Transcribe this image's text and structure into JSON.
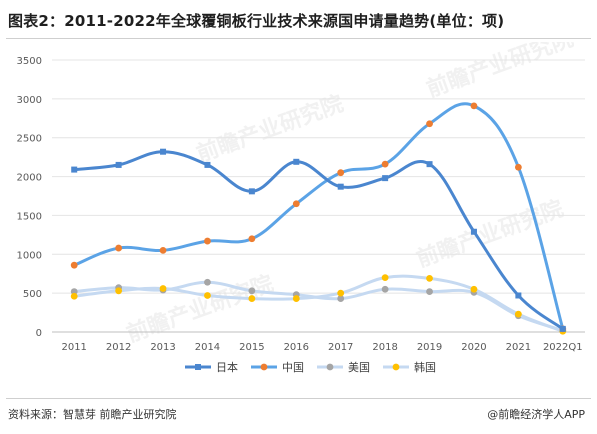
{
  "page": {
    "title": "图表2：2011-2022年全球覆铜板行业技术来源国申请量趋势(单位：项)",
    "source": "资料来源：智慧芽 前瞻产业研究院",
    "brand": "@前瞻经济学人APP",
    "watermark": "前瞻产业研究院"
  },
  "chart_data": {
    "type": "line",
    "title": "图表2：2011-2022年全球覆铜板行业技术来源国申请量趋势(单位：项)",
    "categories": [
      "2011",
      "2012",
      "2013",
      "2014",
      "2015",
      "2016",
      "2017",
      "2018",
      "2019",
      "2020",
      "2021",
      "2022Q1"
    ],
    "ylim": [
      0,
      3500
    ],
    "yticks": [
      0,
      500,
      1000,
      1500,
      2000,
      2500,
      3000,
      3500
    ],
    "grid": true,
    "legend_position": "bottom",
    "series": [
      {
        "name": "日本",
        "color": "#4a86cf",
        "marker": "square",
        "values": [
          2090,
          2150,
          2320,
          2150,
          1810,
          2190,
          1870,
          1980,
          2160,
          1290,
          470,
          40
        ]
      },
      {
        "name": "中国",
        "color": "#5ba3e6",
        "marker": "circle",
        "marker_color": "#ed7d31",
        "values": [
          860,
          1080,
          1050,
          1170,
          1200,
          1650,
          2050,
          2160,
          2680,
          2910,
          2120,
          40
        ]
      },
      {
        "name": "美国",
        "color": "#c5d9f1",
        "marker": "circle",
        "marker_color": "#a5a5a5",
        "values": [
          520,
          570,
          540,
          640,
          530,
          480,
          430,
          550,
          520,
          510,
          210,
          20
        ]
      },
      {
        "name": "韩国",
        "color": "#c5d9f1",
        "marker": "circle",
        "marker_color": "#ffc000",
        "values": [
          460,
          530,
          560,
          470,
          430,
          430,
          500,
          700,
          690,
          550,
          230,
          10
        ]
      }
    ]
  }
}
